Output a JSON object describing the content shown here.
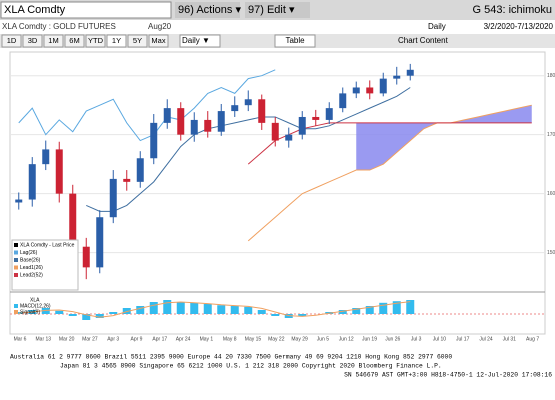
{
  "toolbar": {
    "ticker": "XLA Comdty",
    "actions": "96) Actions ▾",
    "edit": "97) Edit ▾",
    "page": "G 543: ichimoku"
  },
  "header": {
    "security": "XLA Comdty : GOLD FUTURES",
    "contract": "Aug20",
    "frequency": "Daily",
    "range": "3/2/2020-7/13/2020"
  },
  "buttons": [
    "1D",
    "3D",
    "1M",
    "6M",
    "YTD",
    "1Y",
    "5Y",
    "Max"
  ],
  "period": "Daily ▼",
  "table": "Table",
  "chart_content": "Chart Content",
  "chart_data": [
    {
      "type": "candlestick",
      "ylim": [
        1440,
        1830
      ],
      "yticks": [
        1500,
        1600,
        1700,
        1800
      ],
      "grid": true,
      "up_color": "#2a5ea8",
      "down_color": "#cc2233",
      "candles": {
        "name": "XLA Comdty - Last Price",
        "open": [
          1585,
          1590,
          1650,
          1675,
          1600,
          1510,
          1475,
          1560,
          1625,
          1620,
          1660,
          1720,
          1745,
          1700,
          1725,
          1705,
          1740,
          1750,
          1760,
          1720,
          1690,
          1700,
          1730,
          1725,
          1745,
          1770,
          1780,
          1770,
          1795,
          1800
        ],
        "high": [
          1602,
          1662,
          1690,
          1688,
          1615,
          1525,
          1572,
          1640,
          1640,
          1672,
          1735,
          1760,
          1755,
          1738,
          1740,
          1752,
          1765,
          1775,
          1768,
          1730,
          1712,
          1740,
          1742,
          1755,
          1780,
          1790,
          1792,
          1805,
          1815,
          1820
        ],
        "low": [
          1573,
          1578,
          1640,
          1585,
          1495,
          1455,
          1465,
          1550,
          1605,
          1610,
          1650,
          1710,
          1690,
          1688,
          1695,
          1698,
          1730,
          1740,
          1708,
          1680,
          1678,
          1692,
          1715,
          1718,
          1738,
          1762,
          1760,
          1765,
          1785,
          1792
        ],
        "close": [
          1590,
          1650,
          1675,
          1600,
          1510,
          1475,
          1560,
          1625,
          1620,
          1660,
          1720,
          1745,
          1700,
          1725,
          1705,
          1740,
          1750,
          1760,
          1720,
          1690,
          1700,
          1730,
          1725,
          1745,
          1770,
          1780,
          1770,
          1795,
          1800,
          1810
        ]
      },
      "series": [
        {
          "name": "Lag(26)",
          "color": "#5aa8e0",
          "values": [
            1720,
            1745,
            1700,
            1725,
            1705,
            1740,
            1750,
            1760,
            1720,
            1690,
            1700,
            1730,
            1725,
            1745,
            1770,
            1780,
            1770,
            1795,
            1800,
            1810,
            null,
            null,
            null,
            null,
            null,
            null,
            null,
            null,
            null,
            null,
            null,
            null,
            null,
            null,
            null,
            null,
            null,
            null,
            null
          ]
        },
        {
          "name": "Base(26)",
          "color": "#3f6fa0",
          "values": [
            null,
            null,
            null,
            null,
            null,
            1580,
            1570,
            1570,
            1580,
            1600,
            1620,
            1650,
            1680,
            1700,
            1710,
            1715,
            1720,
            1725,
            1730,
            1730,
            1720,
            1710,
            1710,
            1715,
            1725,
            1735,
            1745,
            1755,
            1765,
            1780,
            null,
            null,
            null,
            null,
            null,
            null,
            null,
            null,
            null
          ]
        },
        {
          "name": "Lead1(26)",
          "color": "#f0a060",
          "values": [
            null,
            null,
            null,
            null,
            null,
            null,
            null,
            null,
            null,
            null,
            null,
            null,
            null,
            null,
            null,
            null,
            null,
            1520,
            1540,
            1560,
            1580,
            1600,
            1610,
            1620,
            1630,
            1640,
            1640,
            1650,
            1670,
            1690,
            1710,
            1720,
            1720,
            1725,
            1730,
            1735,
            1740,
            1745,
            1750
          ]
        },
        {
          "name": "Lead2(52)",
          "color": "#cc3344",
          "values": [
            null,
            null,
            null,
            null,
            null,
            null,
            null,
            null,
            null,
            null,
            null,
            null,
            null,
            null,
            null,
            null,
            null,
            1650,
            1670,
            1690,
            1700,
            1710,
            1715,
            1720,
            1720,
            1720,
            1720,
            1720,
            1720,
            1720,
            1720,
            1720,
            1720,
            1720,
            1720,
            1720,
            1720,
            1720,
            1720
          ]
        }
      ],
      "cloud_color": "#8888ee"
    },
    {
      "type": "bar",
      "title": "XLA",
      "ylim": [
        -40,
        45
      ],
      "xtick_labels": [
        "Mar 6",
        "Mar 13",
        "Mar 20",
        "Mar 27",
        "Apr 3",
        "Apr 9",
        "Apr 17",
        "Apr 24",
        "May 1",
        "May 8",
        "May 15",
        "May 22",
        "May 29",
        "Jun 5",
        "Jun 12",
        "Jun 19",
        "Jun 26",
        "Jul 3",
        "Jul 10",
        "Jul 17",
        "Jul 24",
        "Jul 31",
        "Aug 7"
      ],
      "series": [
        {
          "name": "MACD(12,26)",
          "color": "#33bbee",
          "values": [
            5,
            10,
            15,
            8,
            -5,
            -15,
            -10,
            5,
            15,
            20,
            30,
            35,
            30,
            28,
            25,
            22,
            20,
            18,
            10,
            -5,
            -10,
            -5,
            0,
            5,
            10,
            15,
            20,
            28,
            32,
            35
          ]
        },
        {
          "name": "Signal(9)",
          "color": "#f0a060",
          "values": [
            2,
            5,
            9,
            10,
            6,
            -2,
            -8,
            -4,
            6,
            14,
            22,
            28,
            30,
            28,
            26,
            23,
            21,
            19,
            14,
            5,
            -4,
            -6,
            -3,
            2,
            7,
            12,
            17,
            22,
            27,
            31
          ]
        }
      ]
    }
  ],
  "footer": [
    "Australia 61 2 9777 8600  Brazil 5511 2395 9000  Europe 44 20 7330 7500  Germany 49 69 9204 1210  Hong Kong 852 2977 6000",
    "Japan 81 3 4565 8900       Singapore 65 6212 1000       U.S. 1 212 318 2000            Copyright 2020 Bloomberg Finance L.P.",
    "SN 546679 AST  GMT+3:00 H818-4750-1 12-Jul-2020 17:08:16"
  ]
}
